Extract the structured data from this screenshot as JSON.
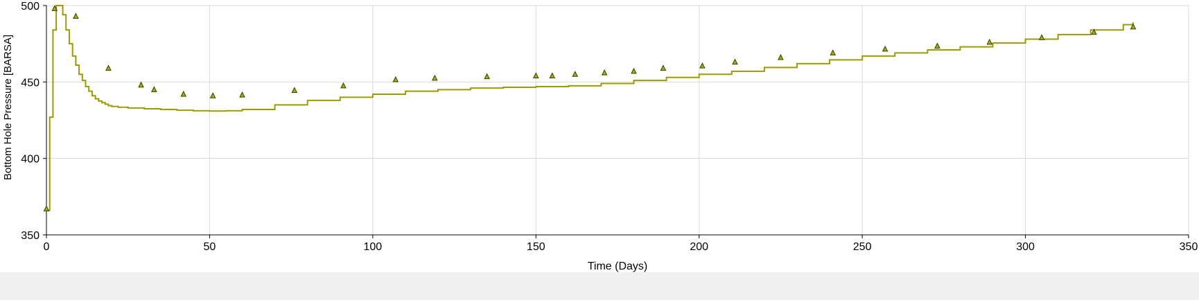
{
  "chart_data": {
    "type": "line",
    "title": "",
    "xlabel": "Time (Days)",
    "ylabel": "Bottom Hole Pressure [BARSA]",
    "xlim": [
      0,
      350
    ],
    "ylim": [
      350,
      500
    ],
    "xticks": [
      0,
      50,
      100,
      150,
      200,
      250,
      300,
      350
    ],
    "yticks": [
      350,
      400,
      450,
      500
    ],
    "grid": true,
    "colors": {
      "line": "#9b9b00",
      "marker_fill": "#9fb400",
      "marker_edge": "#3a3a00",
      "grid": "#d9d9d9"
    },
    "series": [
      {
        "style": "step-line",
        "x": [
          0,
          1,
          2,
          3,
          4,
          5,
          6,
          7,
          8,
          9,
          10,
          11,
          12,
          13,
          14,
          15,
          16,
          17,
          18,
          19,
          20,
          22,
          25,
          30,
          35,
          40,
          45,
          50,
          55,
          60,
          70,
          80,
          90,
          100,
          110,
          120,
          130,
          140,
          150,
          160,
          170,
          180,
          190,
          200,
          210,
          220,
          230,
          240,
          250,
          260,
          270,
          280,
          290,
          300,
          310,
          320,
          330,
          333
        ],
        "y": [
          366,
          427,
          484,
          500,
          500,
          494,
          484,
          475,
          467,
          461,
          455,
          451,
          447,
          444,
          441,
          439,
          437.5,
          436.5,
          435.5,
          434.5,
          434,
          433.5,
          433,
          432.5,
          432,
          431.5,
          431.2,
          431,
          431.2,
          432,
          435,
          438,
          440,
          442,
          444,
          445,
          446,
          446.5,
          447,
          447.5,
          449,
          451,
          453,
          455,
          457,
          459.5,
          462,
          464.5,
          467,
          469,
          471,
          473,
          475.5,
          478,
          481,
          484,
          487.5,
          489
        ]
      },
      {
        "style": "triangle-markers",
        "x": [
          0,
          2.5,
          9,
          19,
          29,
          33,
          42,
          51,
          60,
          76,
          91,
          107,
          119,
          135,
          150,
          155,
          162,
          171,
          180,
          189,
          201,
          211,
          225,
          241,
          257,
          273,
          289,
          305,
          321,
          333
        ],
        "y": [
          367,
          498,
          493,
          459,
          448,
          445,
          442,
          441,
          441.5,
          444.5,
          447.5,
          451.5,
          452.5,
          453.5,
          454,
          454,
          455,
          456,
          457,
          459,
          460.5,
          463,
          466,
          469,
          471.5,
          473.5,
          476,
          479,
          482.5,
          486
        ]
      }
    ]
  }
}
